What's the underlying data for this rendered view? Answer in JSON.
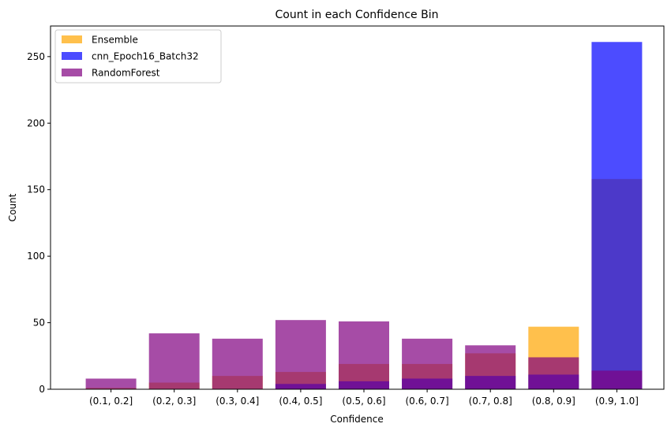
{
  "chart_data": {
    "type": "bar",
    "title": "Count in each Confidence Bin",
    "xlabel": "Confidence",
    "ylabel": "Count",
    "categories": [
      "(0.1, 0.2]",
      "(0.2, 0.3]",
      "(0.3, 0.4]",
      "(0.4, 0.5]",
      "(0.5, 0.6]",
      "(0.6, 0.7]",
      "(0.7, 0.8]",
      "(0.8, 0.9]",
      "(0.9, 1.0]"
    ],
    "ylim": [
      0,
      273
    ],
    "yticks": [
      0,
      50,
      100,
      150,
      200,
      250
    ],
    "grid": false,
    "legend_position": "upper-left",
    "bar_overlay": true,
    "opacity": 0.7,
    "series": [
      {
        "name": "Ensemble",
        "color": "#FFA500",
        "values": [
          1,
          5,
          10,
          13,
          19,
          19,
          27,
          47,
          158
        ]
      },
      {
        "name": "cnn_Epoch16_Batch32",
        "color": "#0000FF",
        "values": [
          0,
          0,
          0,
          4,
          6,
          8,
          10,
          11,
          261
        ]
      },
      {
        "name": "RandomForest",
        "color": "#800080",
        "values": [
          8,
          42,
          38,
          52,
          51,
          38,
          33,
          24,
          14
        ]
      }
    ]
  }
}
